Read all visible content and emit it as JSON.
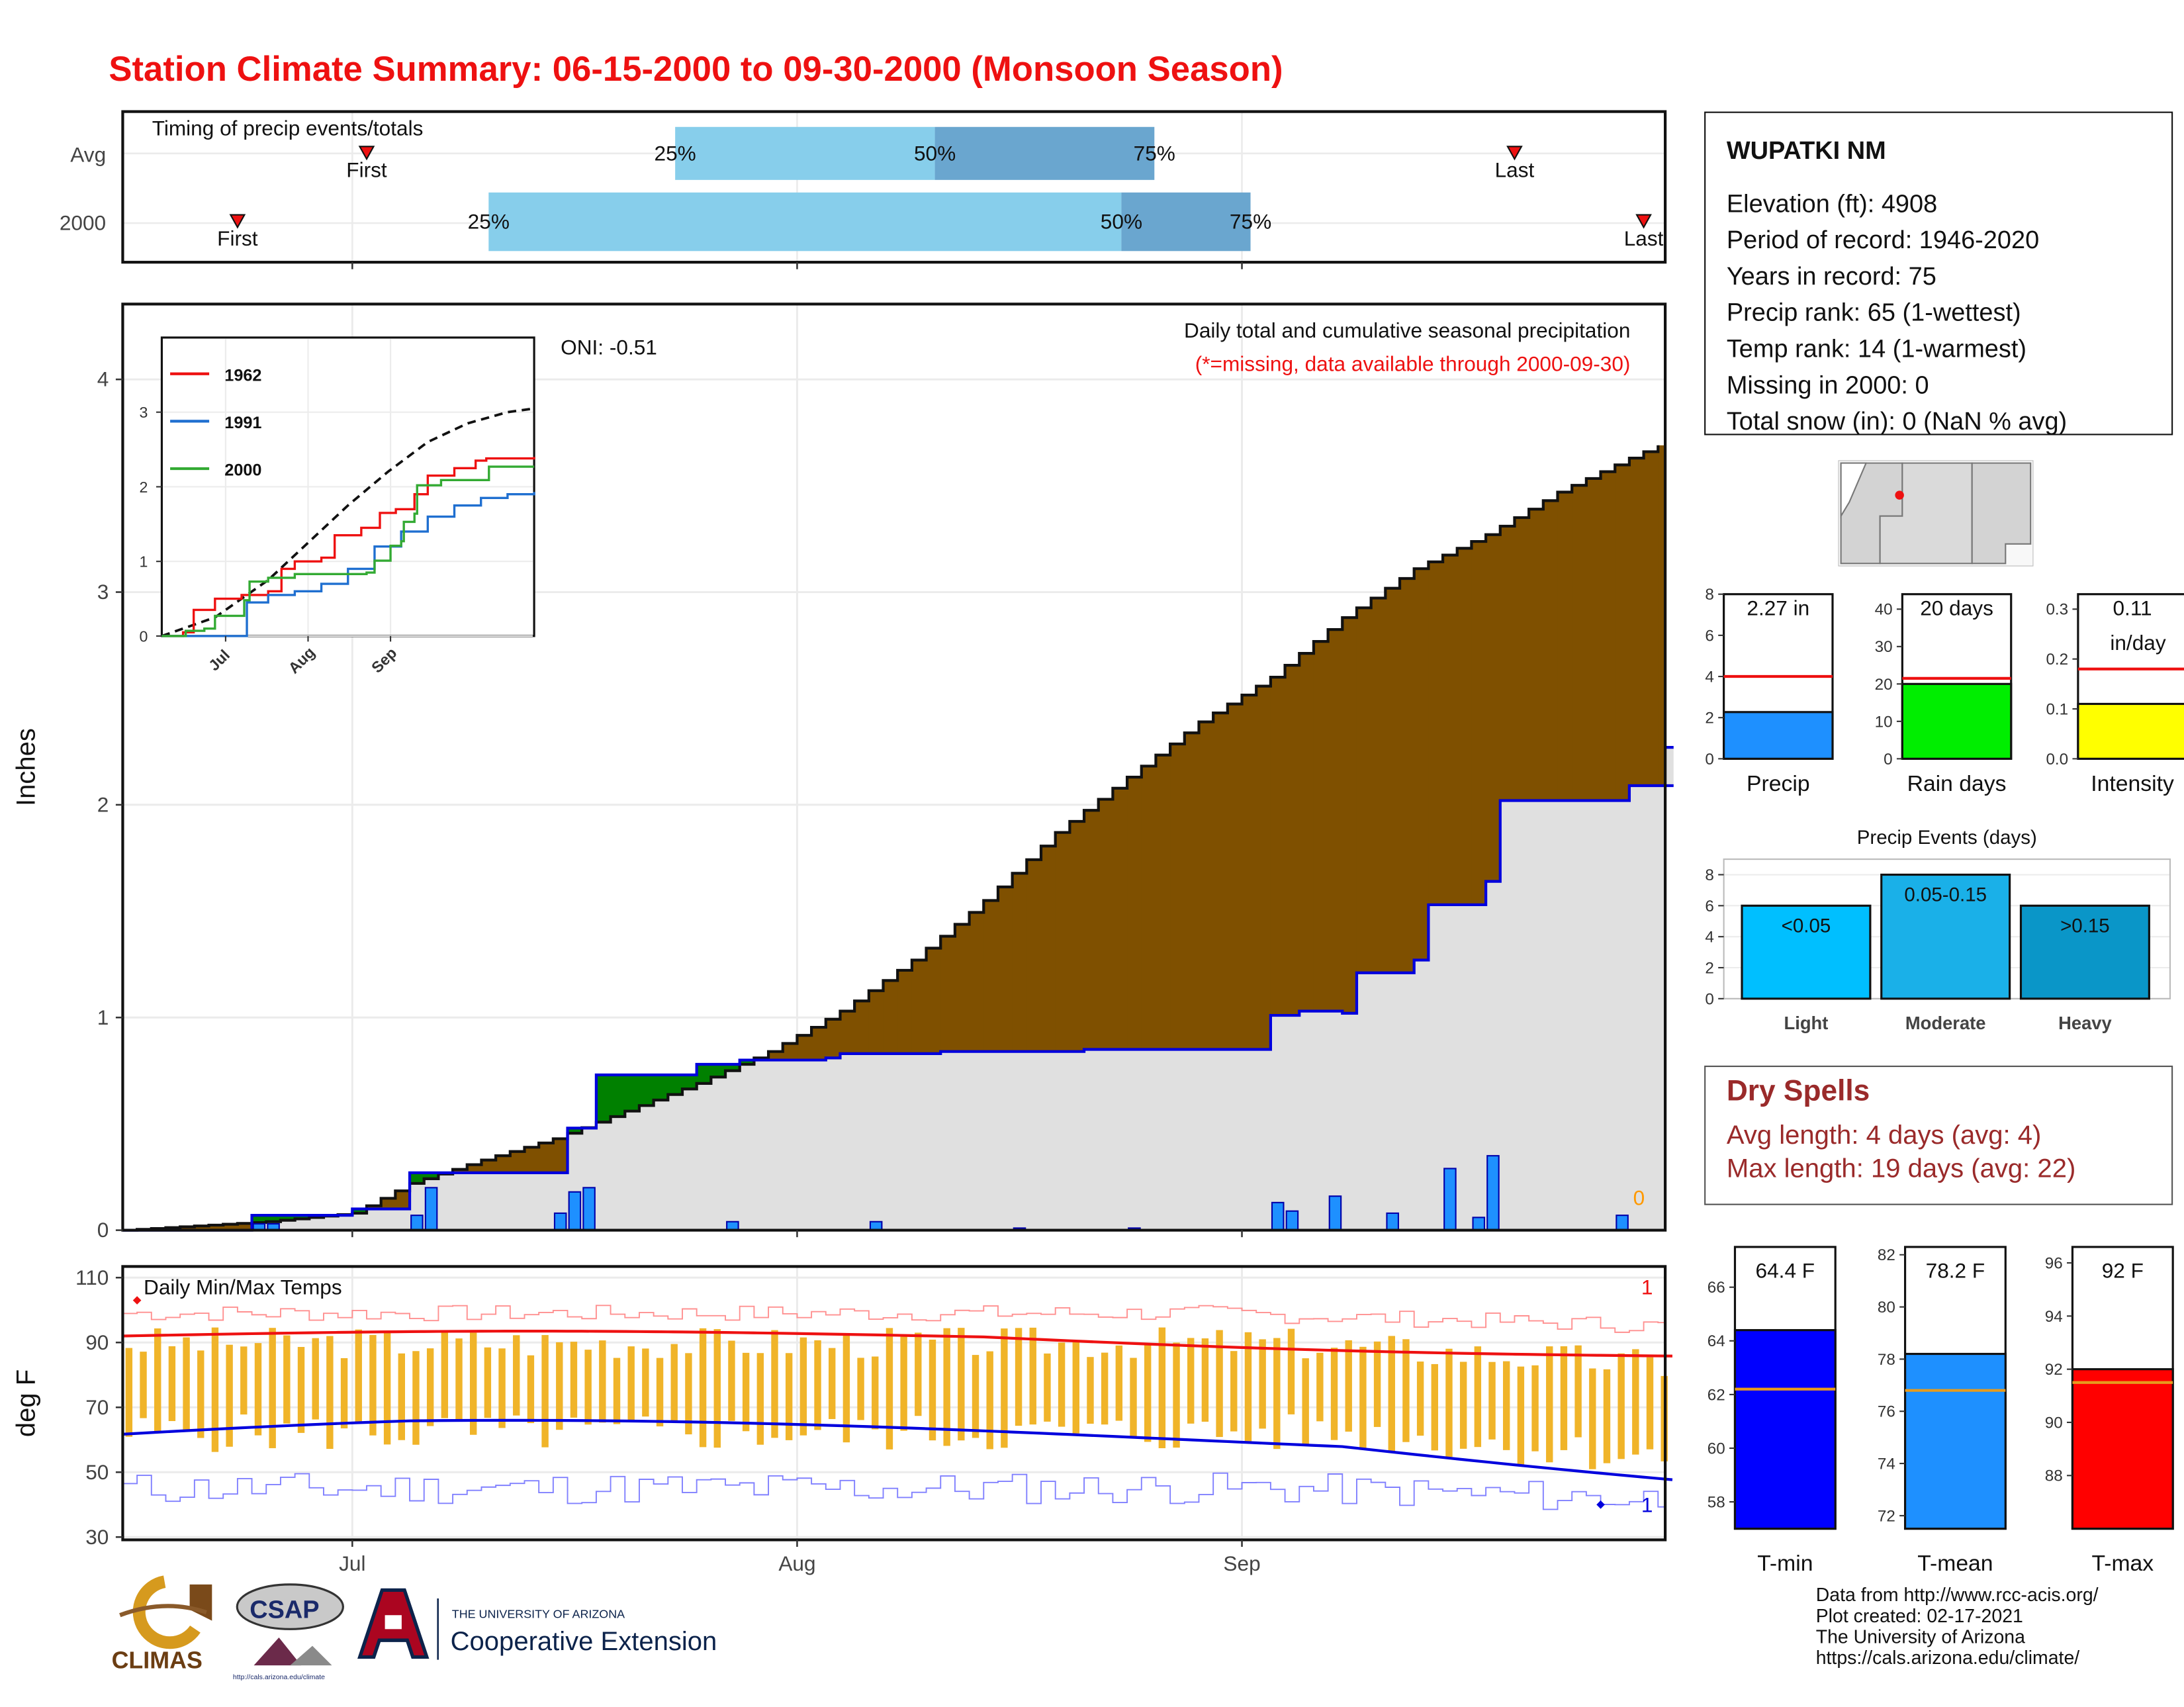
{
  "title": "Station Climate Summary: 06-15-2000 to 09-30-2000 (Monsoon Season)",
  "months": [
    "Jul",
    "Aug",
    "Sep"
  ],
  "timing": {
    "title": "Timing of precip events/totals",
    "rows": [
      {
        "label": "Avg",
        "first": "First",
        "last": "Last",
        "p25": "25%",
        "p50": "50%",
        "p75": "75%",
        "first_day": 17,
        "last_day": 97,
        "d25": 38.5,
        "d50": 56.6,
        "d75": 71.9
      },
      {
        "label": "2000",
        "first": "First",
        "last": "Last",
        "p25": "25%",
        "p50": "50%",
        "p75": "75%",
        "first_day": 8,
        "last_day": 106,
        "d25": 25.5,
        "d50": 69.6,
        "d75": 78.6
      }
    ]
  },
  "precip_chart": {
    "ylabel": "Inches",
    "title": "Daily total and cumulative seasonal precipitation",
    "subtitle": "(*=missing, data available through 2000-09-30)",
    "oni": "ONI: -0.51",
    "yticks": [
      "0",
      "1",
      "2",
      "3",
      "4"
    ],
    "zero_label": "0",
    "colors": {
      "above": "#7f5000",
      "below": "#008000",
      "obs_fill": "#e0e0e0",
      "obs_line": "#0000dd",
      "bar": "#1e90ff"
    }
  },
  "chart_data": {
    "type": "area",
    "xlabel": "",
    "ylabel": "Inches",
    "x_days": "days since 06-15-2000",
    "avg_cumulative": [
      [
        0,
        0
      ],
      [
        5,
        0.02
      ],
      [
        10,
        0.04
      ],
      [
        16,
        0.08
      ],
      [
        20,
        0.22
      ],
      [
        25,
        0.33
      ],
      [
        30,
        0.43
      ],
      [
        35,
        0.56
      ],
      [
        40,
        0.69
      ],
      [
        45,
        0.84
      ],
      [
        50,
        1.03
      ],
      [
        55,
        1.27
      ],
      [
        60,
        1.55
      ],
      [
        65,
        1.87
      ],
      [
        70,
        2.13
      ],
      [
        75,
        2.39
      ],
      [
        80,
        2.6
      ],
      [
        85,
        2.88
      ],
      [
        90,
        3.11
      ],
      [
        95,
        3.27
      ],
      [
        100,
        3.47
      ],
      [
        105,
        3.63
      ],
      [
        110,
        3.78
      ],
      [
        114,
        3.86
      ],
      [
        118,
        3.88
      ],
      [
        123,
        3.93
      ],
      [
        127,
        3.96
      ]
    ],
    "obs_cumulative": [
      [
        0,
        0
      ],
      [
        9,
        0.07
      ],
      [
        16,
        0.1
      ],
      [
        20,
        0.27
      ],
      [
        30,
        0.27
      ],
      [
        31,
        0.48
      ],
      [
        33,
        0.73
      ],
      [
        40,
        0.78
      ],
      [
        43,
        0.8
      ],
      [
        49,
        0.81
      ],
      [
        50,
        0.83
      ],
      [
        57,
        0.84
      ],
      [
        67,
        0.85
      ],
      [
        77,
        0.85
      ],
      [
        80,
        1.01
      ],
      [
        82,
        1.03
      ],
      [
        85,
        1.02
      ],
      [
        86,
        1.21
      ],
      [
        87,
        1.21
      ],
      [
        90,
        1.27
      ],
      [
        91,
        1.53
      ],
      [
        92,
        1.53
      ],
      [
        95,
        1.64
      ],
      [
        96,
        2.02
      ],
      [
        104,
        2.02
      ],
      [
        105,
        2.09
      ],
      [
        122,
        2.09
      ],
      [
        123,
        2.27
      ],
      [
        127,
        2.27
      ]
    ],
    "daily_bars": [
      [
        9,
        0.03
      ],
      [
        10,
        0.03
      ],
      [
        20,
        0.07
      ],
      [
        21,
        0.2
      ],
      [
        30,
        0.08
      ],
      [
        31,
        0.18
      ],
      [
        32,
        0.2
      ],
      [
        42,
        0.04
      ],
      [
        52,
        0.04
      ],
      [
        62,
        0.01
      ],
      [
        70,
        0.01
      ],
      [
        80,
        0.13
      ],
      [
        81,
        0.09
      ],
      [
        84,
        0.16
      ],
      [
        88,
        0.08
      ],
      [
        92,
        0.29
      ],
      [
        94,
        0.06
      ],
      [
        95,
        0.35
      ],
      [
        104,
        0.07
      ],
      [
        123,
        0.18
      ]
    ],
    "ylim": [
      0,
      4.4
    ],
    "xlim": [
      0,
      127
    ]
  },
  "inset": {
    "series": [
      {
        "name": "1962",
        "color": "#ee1111",
        "points": [
          [
            0,
            0
          ],
          [
            8,
            0.05
          ],
          [
            12,
            0.35
          ],
          [
            20,
            0.5
          ],
          [
            30,
            0.55
          ],
          [
            40,
            0.6
          ],
          [
            45,
            0.9
          ],
          [
            50,
            1.0
          ],
          [
            60,
            1.05
          ],
          [
            65,
            1.35
          ],
          [
            75,
            1.45
          ],
          [
            82,
            1.65
          ],
          [
            88,
            1.7
          ],
          [
            95,
            1.9
          ],
          [
            100,
            2.15
          ],
          [
            110,
            2.25
          ],
          [
            118,
            2.35
          ],
          [
            122,
            2.38
          ],
          [
            130,
            2.38
          ],
          [
            140,
            2.4
          ]
        ]
      },
      {
        "name": "1991",
        "color": "#1f6fd0",
        "points": [
          [
            0,
            0
          ],
          [
            20,
            0
          ],
          [
            25,
            0
          ],
          [
            32,
            0.45
          ],
          [
            40,
            0.55
          ],
          [
            50,
            0.6
          ],
          [
            60,
            0.7
          ],
          [
            70,
            0.9
          ],
          [
            80,
            1.2
          ],
          [
            90,
            1.4
          ],
          [
            100,
            1.6
          ],
          [
            110,
            1.75
          ],
          [
            120,
            1.85
          ],
          [
            130,
            1.9
          ],
          [
            140,
            1.93
          ]
        ]
      },
      {
        "name": "2000",
        "color": "#33aa33",
        "points": [
          [
            0,
            0
          ],
          [
            9,
            0.07
          ],
          [
            16,
            0.1
          ],
          [
            20,
            0.27
          ],
          [
            30,
            0.27
          ],
          [
            31,
            0.48
          ],
          [
            33,
            0.73
          ],
          [
            40,
            0.78
          ],
          [
            50,
            0.83
          ],
          [
            77,
            0.85
          ],
          [
            80,
            1.01
          ],
          [
            86,
            1.21
          ],
          [
            90,
            1.27
          ],
          [
            91,
            1.53
          ],
          [
            95,
            1.64
          ],
          [
            96,
            2.02
          ],
          [
            104,
            2.02
          ],
          [
            105,
            2.09
          ],
          [
            122,
            2.09
          ],
          [
            123,
            2.27
          ],
          [
            140,
            2.27
          ]
        ]
      }
    ],
    "avg_points": [
      [
        0,
        0
      ],
      [
        20,
        0.25
      ],
      [
        40,
        0.75
      ],
      [
        55,
        1.25
      ],
      [
        70,
        1.75
      ],
      [
        85,
        2.2
      ],
      [
        100,
        2.6
      ],
      [
        115,
        2.85
      ],
      [
        130,
        3.0
      ],
      [
        140,
        3.05
      ]
    ],
    "yticks": [
      "0",
      "1",
      "2",
      "3"
    ],
    "xticks": [
      "Jul",
      "Aug",
      "Sep"
    ]
  },
  "temp_chart": {
    "title": "Daily Min/Max Temps",
    "ylabel": "deg F",
    "yticks": [
      "30",
      "50",
      "70",
      "90",
      "110"
    ],
    "record_hi_count": "1",
    "record_lo_count": "1"
  },
  "station": {
    "name": "WUPATKI NM",
    "lines": [
      "Elevation (ft): 4908",
      "Period of record: 1946-2020",
      "Years in record: 75",
      "Precip rank: 65 (1-wettest)",
      "Temp rank: 14 (1-warmest)",
      "Missing in 2000: 0",
      "Total snow (in): 0 (NaN % avg)"
    ]
  },
  "mini_charts": [
    {
      "name": "Precip",
      "value_label": "2.27 in",
      "value": 2.27,
      "avg": 4.0,
      "max": 8,
      "ticks": [
        "0",
        "2",
        "4",
        "6",
        "8"
      ],
      "color": "#1e90ff"
    },
    {
      "name": "Rain days",
      "value_label": "20 days",
      "value": 20,
      "avg": 21.5,
      "max": 44,
      "ticks": [
        "0",
        "10",
        "20",
        "30",
        "40"
      ],
      "color": "#00ee00"
    },
    {
      "name": "Intensity",
      "value_label": "0.11",
      "value_label2": "in/day",
      "value": 0.11,
      "avg": 0.18,
      "max": 0.33,
      "ticks": [
        "0.0",
        "0.1",
        "0.2",
        "0.3"
      ],
      "color": "#ffff00"
    }
  ],
  "events": {
    "title": "Precip Events (days)",
    "bars": [
      {
        "name": "Light",
        "label": "<0.05",
        "value": 6,
        "color": "#00bfff"
      },
      {
        "name": "Moderate",
        "label": "0.05-0.15",
        "value": 8,
        "color": "#1ab0e8"
      },
      {
        "name": "Heavy",
        "label": ">0.15",
        "value": 6,
        "color": "#0a96c8"
      }
    ],
    "ticks": [
      "0",
      "2",
      "4",
      "6",
      "8"
    ]
  },
  "dry_spells": {
    "title": "Dry Spells",
    "avg": "Avg length: 4 days (avg: 4)",
    "max": "Max length: 19 days (avg: 22)"
  },
  "temp_bars": [
    {
      "name": "T-min",
      "value_label": "64.4 F",
      "value": 64.4,
      "avg": 62.2,
      "min": 57,
      "max": 67.5,
      "ticks": [
        "58",
        "60",
        "62",
        "64",
        "66"
      ],
      "color": "#0000ff"
    },
    {
      "name": "T-mean",
      "value_label": "78.2 F",
      "value": 78.2,
      "avg": 76.8,
      "min": 71.5,
      "max": 82.3,
      "ticks": [
        "72",
        "74",
        "76",
        "78",
        "80",
        "82"
      ],
      "color": "#1e90ff"
    },
    {
      "name": "T-max",
      "value_label": "92 F",
      "value": 92,
      "avg": 91.5,
      "min": 86,
      "max": 96.6,
      "ticks": [
        "88",
        "90",
        "92",
        "94",
        "96"
      ],
      "color": "#ff0000"
    }
  ],
  "credits": [
    "Data from http://www.rcc-acis.org/",
    "Plot created: 02-17-2021",
    "The University of Arizona",
    "https://cals.arizona.edu/climate/"
  ],
  "logos": {
    "climas": "CLIMAS",
    "csap": "CSAP",
    "csap_url": "http://cals.arizona.edu/climate",
    "ua_small": "THE UNIVERSITY OF ARIZONA",
    "ua_big": "Cooperative Extension"
  }
}
